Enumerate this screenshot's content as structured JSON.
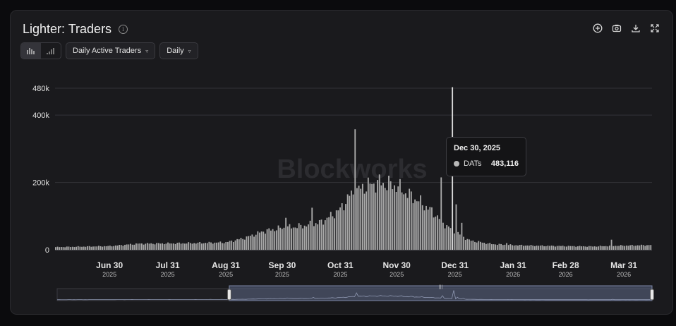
{
  "header": {
    "title": "Lighter: Traders",
    "info_icon": "info-icon"
  },
  "toolbar": {
    "icons": [
      "plus-circle-icon",
      "camera-icon",
      "download-icon",
      "expand-icon"
    ]
  },
  "controls": {
    "chart_type_options": [
      "bar-chart-icon",
      "signal-bars-icon"
    ],
    "metric_select": "Daily Active Traders",
    "interval_select": "Daily"
  },
  "watermark": "Blockworks",
  "tooltip": {
    "date": "Dec 30, 2025",
    "series": "DATs",
    "value": "483,116"
  },
  "colors": {
    "bars": "#a9a9a9",
    "highlight": "#dcdcdc",
    "navigator": "#5b6685",
    "background": "#1a1a1d"
  },
  "chart_data": {
    "type": "bar",
    "title": "Lighter: Traders",
    "x_start": "2025-06-01",
    "x_end": "2026-04-15",
    "ylim": [
      0,
      500000
    ],
    "y_ticks": [
      {
        "value": 0,
        "label": "0"
      },
      {
        "value": 200000,
        "label": "200k"
      },
      {
        "value": 400000,
        "label": "400k"
      },
      {
        "value": 480000,
        "label": "480k"
      }
    ],
    "x_ticks": [
      {
        "date": "2025-06-30",
        "label": "Jun 30",
        "year": "2025"
      },
      {
        "date": "2025-07-31",
        "label": "Jul 31",
        "year": "2025"
      },
      {
        "date": "2025-08-31",
        "label": "Aug 31",
        "year": "2025"
      },
      {
        "date": "2025-09-30",
        "label": "Sep 30",
        "year": "2025"
      },
      {
        "date": "2025-10-31",
        "label": "Oct 31",
        "year": "2025"
      },
      {
        "date": "2025-11-30",
        "label": "Nov 30",
        "year": "2025"
      },
      {
        "date": "2025-12-31",
        "label": "Dec 31",
        "year": "2025"
      },
      {
        "date": "2026-01-31",
        "label": "Jan 31",
        "year": "2026"
      },
      {
        "date": "2026-02-28",
        "label": "Feb 28",
        "year": "2026"
      },
      {
        "date": "2026-03-31",
        "label": "Mar 31",
        "year": "2026"
      }
    ],
    "series_keypoints": [
      [
        "2025-06-01",
        8000
      ],
      [
        "2025-06-15",
        9500
      ],
      [
        "2025-06-30",
        11000
      ],
      [
        "2025-07-15",
        18000
      ],
      [
        "2025-07-31",
        19000
      ],
      [
        "2025-08-15",
        20000
      ],
      [
        "2025-08-31",
        22000
      ],
      [
        "2025-09-10",
        35000
      ],
      [
        "2025-09-20",
        55000
      ],
      [
        "2025-09-30",
        65000
      ],
      [
        "2025-10-10",
        70000
      ],
      [
        "2025-10-20",
        80000
      ],
      [
        "2025-10-26",
        100000
      ],
      [
        "2025-10-31",
        120000
      ],
      [
        "2025-11-05",
        160000
      ],
      [
        "2025-11-12",
        185000
      ],
      [
        "2025-11-20",
        200000
      ],
      [
        "2025-11-30",
        190000
      ],
      [
        "2025-12-05",
        170000
      ],
      [
        "2025-12-12",
        145000
      ],
      [
        "2025-12-20",
        110000
      ],
      [
        "2025-12-26",
        75000
      ],
      [
        "2025-12-31",
        55000
      ],
      [
        "2026-01-08",
        28000
      ],
      [
        "2026-01-20",
        17000
      ],
      [
        "2026-01-31",
        14000
      ],
      [
        "2026-02-15",
        12000
      ],
      [
        "2026-02-28",
        11000
      ],
      [
        "2026-03-15",
        10000
      ],
      [
        "2026-03-27",
        12000
      ],
      [
        "2026-04-15",
        14000
      ]
    ],
    "spikes": [
      {
        "date": "2025-11-08",
        "value": 358000
      },
      {
        "date": "2025-10-02",
        "value": 95000
      },
      {
        "date": "2025-10-16",
        "value": 125000
      },
      {
        "date": "2025-12-24",
        "value": 215000
      },
      {
        "date": "2025-12-30",
        "value": 483116
      },
      {
        "date": "2026-01-01",
        "value": 135000
      },
      {
        "date": "2026-01-04",
        "value": 80000
      },
      {
        "date": "2026-03-25",
        "value": 30000
      },
      {
        "date": "2026-01-28",
        "value": 20000
      }
    ],
    "selected": {
      "date": "2025-12-30",
      "series": "DATs",
      "value": 483116
    },
    "navigator_range": [
      "2025-09-01",
      "2026-04-15"
    ]
  }
}
